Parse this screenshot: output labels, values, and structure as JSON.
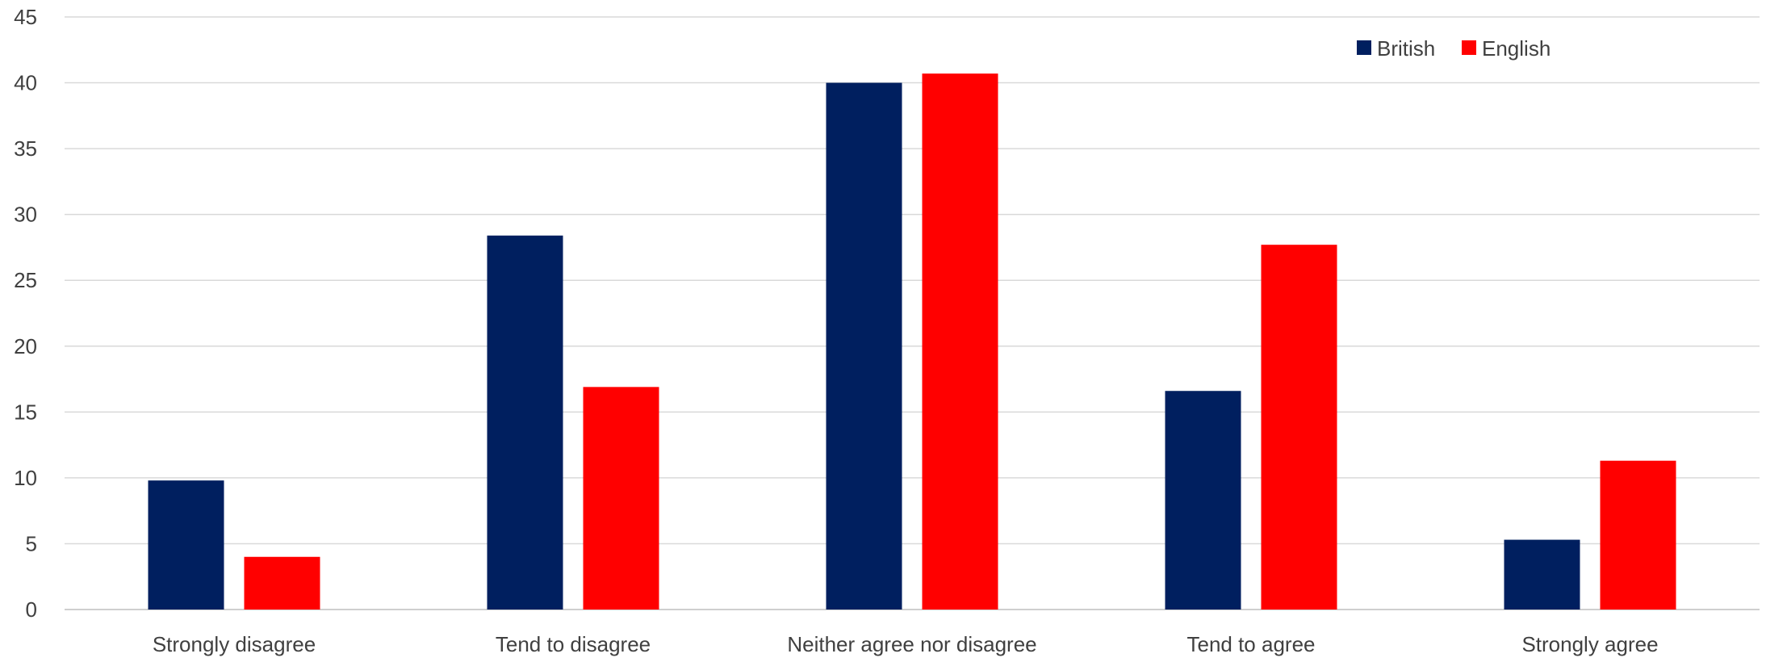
{
  "chart_data": {
    "type": "bar",
    "title": "",
    "xlabel": "",
    "ylabel": "",
    "categories": [
      "Strongly disagree",
      "Tend to disagree",
      "Neither agree nor disagree",
      "Tend to agree",
      "Strongly agree"
    ],
    "series": [
      {
        "name": "British",
        "color": "#001f5f",
        "values": [
          9.8,
          28.4,
          40.0,
          16.6,
          5.3
        ]
      },
      {
        "name": "English",
        "color": "#ff0000",
        "values": [
          4.0,
          16.9,
          40.7,
          27.7,
          11.3
        ]
      }
    ],
    "ylim": [
      0,
      45
    ],
    "yticks": [
      "0",
      "5",
      "10",
      "15",
      "20",
      "25",
      "30",
      "35",
      "40",
      "45"
    ],
    "grid": true,
    "legend_position": "top-right"
  }
}
